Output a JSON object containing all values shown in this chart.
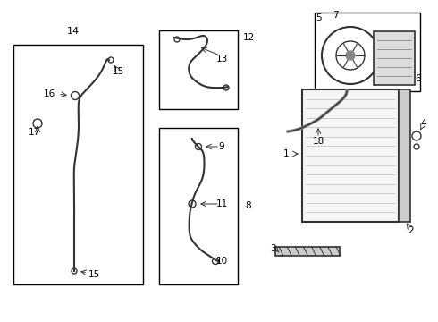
{
  "bg_color": "#ffffff",
  "line_color": "#333333",
  "text_color": "#000000",
  "box_color": "#000000",
  "fig_width": 4.9,
  "fig_height": 3.6,
  "dpi": 100
}
